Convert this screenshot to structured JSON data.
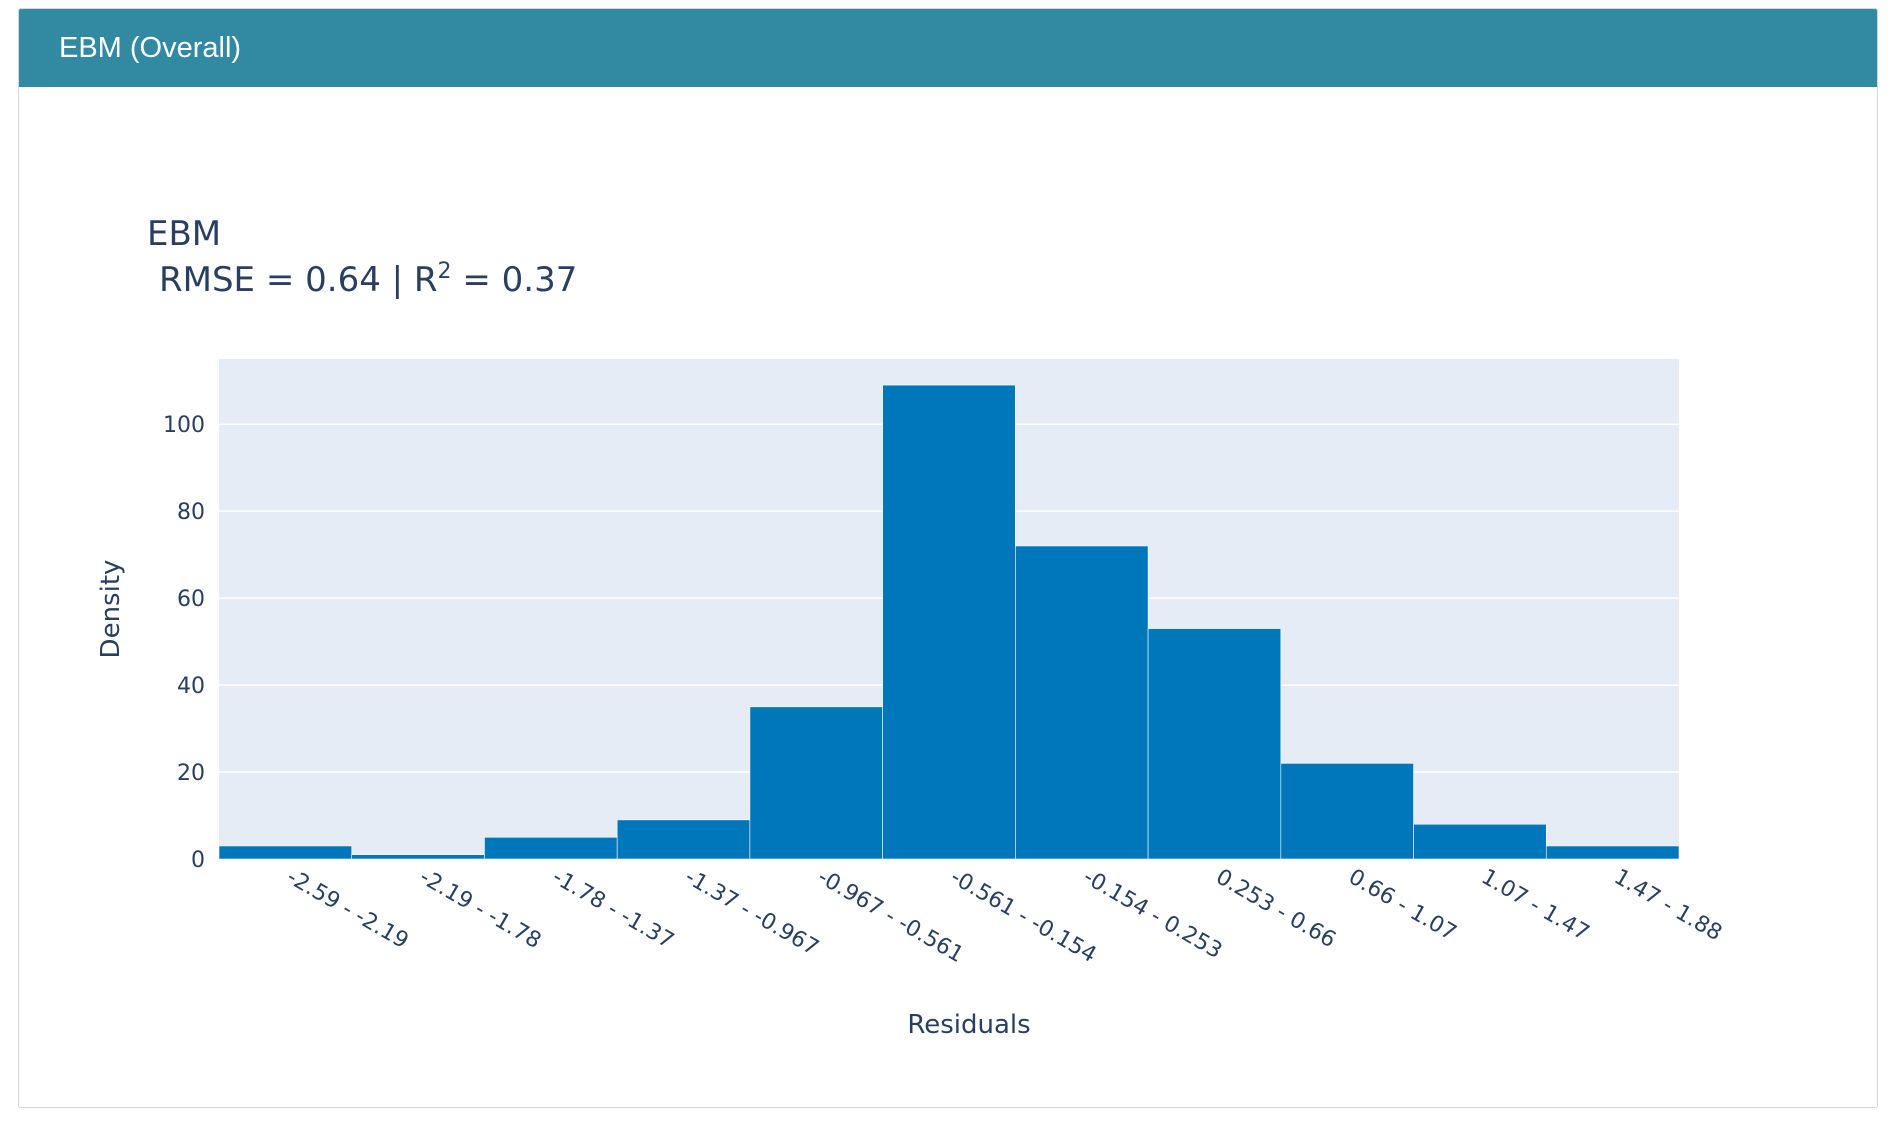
{
  "panel": {
    "title": "EBM (Overall)"
  },
  "colors": {
    "header_bg": "#318aa2",
    "plot_bg": "#e5ecf6",
    "bar_fill": "#0077bb",
    "text": "#2a3f5f",
    "grid": "#ffffff"
  },
  "chart_data": {
    "type": "bar",
    "title": "EBM",
    "subtitle_prefix": "RMSE = 0.64 | R",
    "subtitle_sup": "2",
    "subtitle_suffix": " = 0.37",
    "xlabel": "Residuals",
    "ylabel": "Density",
    "ylim": [
      0,
      115
    ],
    "yticks": [
      0,
      20,
      40,
      60,
      80,
      100
    ],
    "grid": true,
    "categories": [
      "-2.59 - -2.19",
      "-2.19 - -1.78",
      "-1.78 - -1.37",
      "-1.37 - -0.967",
      "-0.967 - -0.561",
      "-0.561 - -0.154",
      "-0.154 - 0.253",
      "0.253 - 0.66",
      "0.66 - 1.07",
      "1.07 - 1.47",
      "1.47 - 1.88"
    ],
    "values": [
      3,
      1,
      5,
      9,
      35,
      109,
      72,
      53,
      22,
      8,
      3
    ]
  }
}
